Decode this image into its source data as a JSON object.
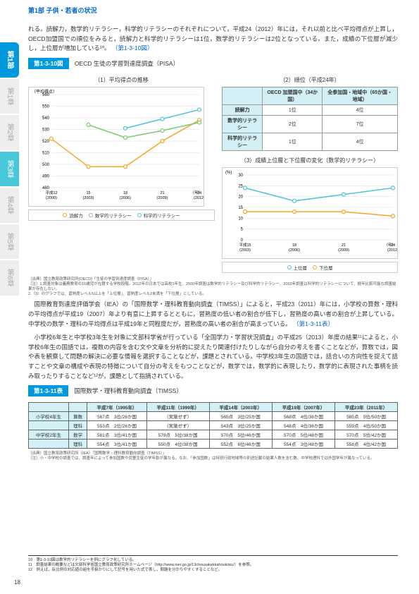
{
  "header": {
    "breadcrumb": "第1部 子供・若者の状況"
  },
  "sidebar": {
    "main": "第1部",
    "chapters": [
      "第1章",
      "第2章",
      "第3章",
      "第4章",
      "第5章",
      "第6章"
    ],
    "active": 2
  },
  "intro": {
    "text": "れる。読解力，数学的リテラシー，科学的リテラシーのそれぞれについて，平成24（2012）年には，それ以前と比べ平均得点が上昇し，OECD加盟国での順位をみると，読解力と科学的リテラシーは1位，数学的リテラシーは2位となっている。また，成績の下位層が減少し，上位層が増加している¹⁰。",
    "ref": "（第1-3-10図）"
  },
  "fig10": {
    "label": "第1-3-10図",
    "title": "OECD 生徒の学習到達度調査（PISA）",
    "chart1": {
      "title": "（1）平均得点の推移",
      "ylabel": "（平均得点）",
      "ylim": [
        480,
        560
      ],
      "yticks": [
        480,
        490,
        500,
        510,
        520,
        530,
        540,
        550,
        560
      ],
      "xlabels": [
        "平成12(2000)",
        "15(2003)",
        "18(2006)",
        "21(2009)",
        "24(2012)"
      ],
      "xlabel_suffix": "（年）",
      "series": [
        {
          "name": "読解力",
          "color": "#f5a623",
          "values": [
            522,
            498,
            498,
            520,
            538
          ]
        },
        {
          "name": "数学的リテラシー",
          "color": "#7bc96f",
          "values": [
            null,
            534,
            523,
            529,
            536
          ]
        },
        {
          "name": "科学的リテラシー",
          "color": "#4fc3d9",
          "values": [
            null,
            null,
            531,
            539,
            547
          ]
        }
      ]
    },
    "ranktable": {
      "title": "（2）順位（平成24年）",
      "cols": [
        "",
        "OECD 加盟国中（34か国）",
        "全参加国・地域中（65か国・地域）"
      ],
      "rows": [
        [
          "読解力",
          "1位",
          "4位"
        ],
        [
          "数学的リテラシー",
          "2位",
          "7位"
        ],
        [
          "科学的リテラシー",
          "1位",
          "4位"
        ]
      ]
    },
    "chart3": {
      "title": "（3）成績上位層と下位層の変化（数学的リテラシー）",
      "ylabel": "(%)",
      "ylim": [
        0,
        30
      ],
      "yticks": [
        0,
        5,
        10,
        15,
        20,
        25,
        30
      ],
      "xlabels": [
        "平成15(2003)",
        "18(2006)",
        "21(2009)",
        "24(2012)"
      ],
      "xlabel_suffix": "（年）",
      "series": [
        {
          "name": "上位層",
          "color": "#4fc3d9",
          "values": [
            24,
            18,
            21,
            24
          ]
        },
        {
          "name": "下位層",
          "color": "#f5a623",
          "values": [
            13,
            13,
            13,
            11
          ]
        }
      ]
    },
    "source": "（出典）国立教育政策研究所(OECD)「生徒の学習到達度調査（PISA）」\n（注）1.調査対象は義務教育の15歳児が在籍する学校段階。2012年の日本では高校1年生、2000年調査は数学的リテラシー及び科学的リテラシー、2003年調査は科学的リテラシーについて、経年比較可能な調査結果が存在しない。\n2.（3）のグラフでは、習熟度レベル5以上を「上位層」、習熟度レベル2未満を「下位層」としている。"
  },
  "body2": {
    "p1": "　国際教育到達度評価学会（IEA）の「国際数学・理科教育動向調査（TIMSS）」によると，平成23（2011）年には，小学校の算数・理科の平均得点が平成19（2007）年より有意に上昇するとともに，習熟度の低い者の割合が低下し，習熟度の高い者の割合が上昇している。中学校の数学・理科の平均得点は平成19年と同程度だが，習熟度の高い者の割合が高まっている。",
    "ref1": "（第1-3-11表）",
    "p2": "　小学校6年生と中学校3年生を対象に文部科学省が行っている「全国学力・学習状況調査」の平成25（2013）年度の結果¹¹によると，小学校6年生の国語では，複数の内容を含む文や文章を分析的に捉えたり関連付けたりしながら自分の考えを書くことなどが，算数では，図や表を観察して問題の解決に必要な情報を選択することなどが，課題とされている。中学校3年生の国語では，話合いの方向性を捉えて話すことや文章の構成や表現の特徴について自分の考えをもつことなどが，数学では，数学的に表現したり，数学的に表現された事柄を読み取ったりすることなど¹²が，課題として指摘されている。"
  },
  "table11": {
    "label": "第1-3-11表",
    "title": "国際数学・理科教育動向調査（TIMSS）",
    "cols": [
      "",
      "",
      "平成7年（1995年）",
      "平成11年（1999年）",
      "平成14年（2003年）",
      "平成19年（2007年）",
      "平成23年（2011年）"
    ],
    "rows": [
      [
        "小学校4年生",
        "算数",
        "567点　3位/26か国",
        "（実施せず）",
        "565点　3位/25か国",
        "568点　4位/36か国",
        "585点　5位/50か国"
      ],
      [
        "",
        "理科",
        "553点　2位/26か国",
        "（実施せず）",
        "543点　3位/25か国",
        "548点　4位/36か国",
        "559点　4位/50か国"
      ],
      [
        "中学校2年生",
        "数学",
        "581点　3位/41か国",
        "579点　5位/38か国",
        "570点　5位/46か国",
        "570点　5位/48か国",
        "570点　5位/42か国"
      ],
      [
        "",
        "理科",
        "554点　3位/41か国",
        "550点　4位/38か国",
        "552点　6位/46か国",
        "554点　3位/48か国",
        "558点　4位/42か国"
      ]
    ],
    "source": "（出典）国立教育政策研究所（IEA）「国際数学・理科教育動向調査（TIMSS）」\n（注）小・中学校の調査では、調査年によって参加国数や児童生徒の学年齢が異なる。なお、「参加国数」は特別行政地域等の別途記載の結果人数を含む数、中学校理科では外国学年が異なっている。"
  },
  "footnotes": {
    "n10": "10　第1-3-10図は数学的リテラシーを例にグラフ化している。",
    "n11": "11　調査結果の概要などは文部科学省国立教育政策研究所ホームページ（http://www.nier.go.jp/13chousakekkahoukoku/）を参照。",
    "n12": "12　例えば，反比例の対応値の組を手掛かりにして記号を用いた式で表し，問題を分かりやすくすることなど。"
  },
  "page": "18"
}
